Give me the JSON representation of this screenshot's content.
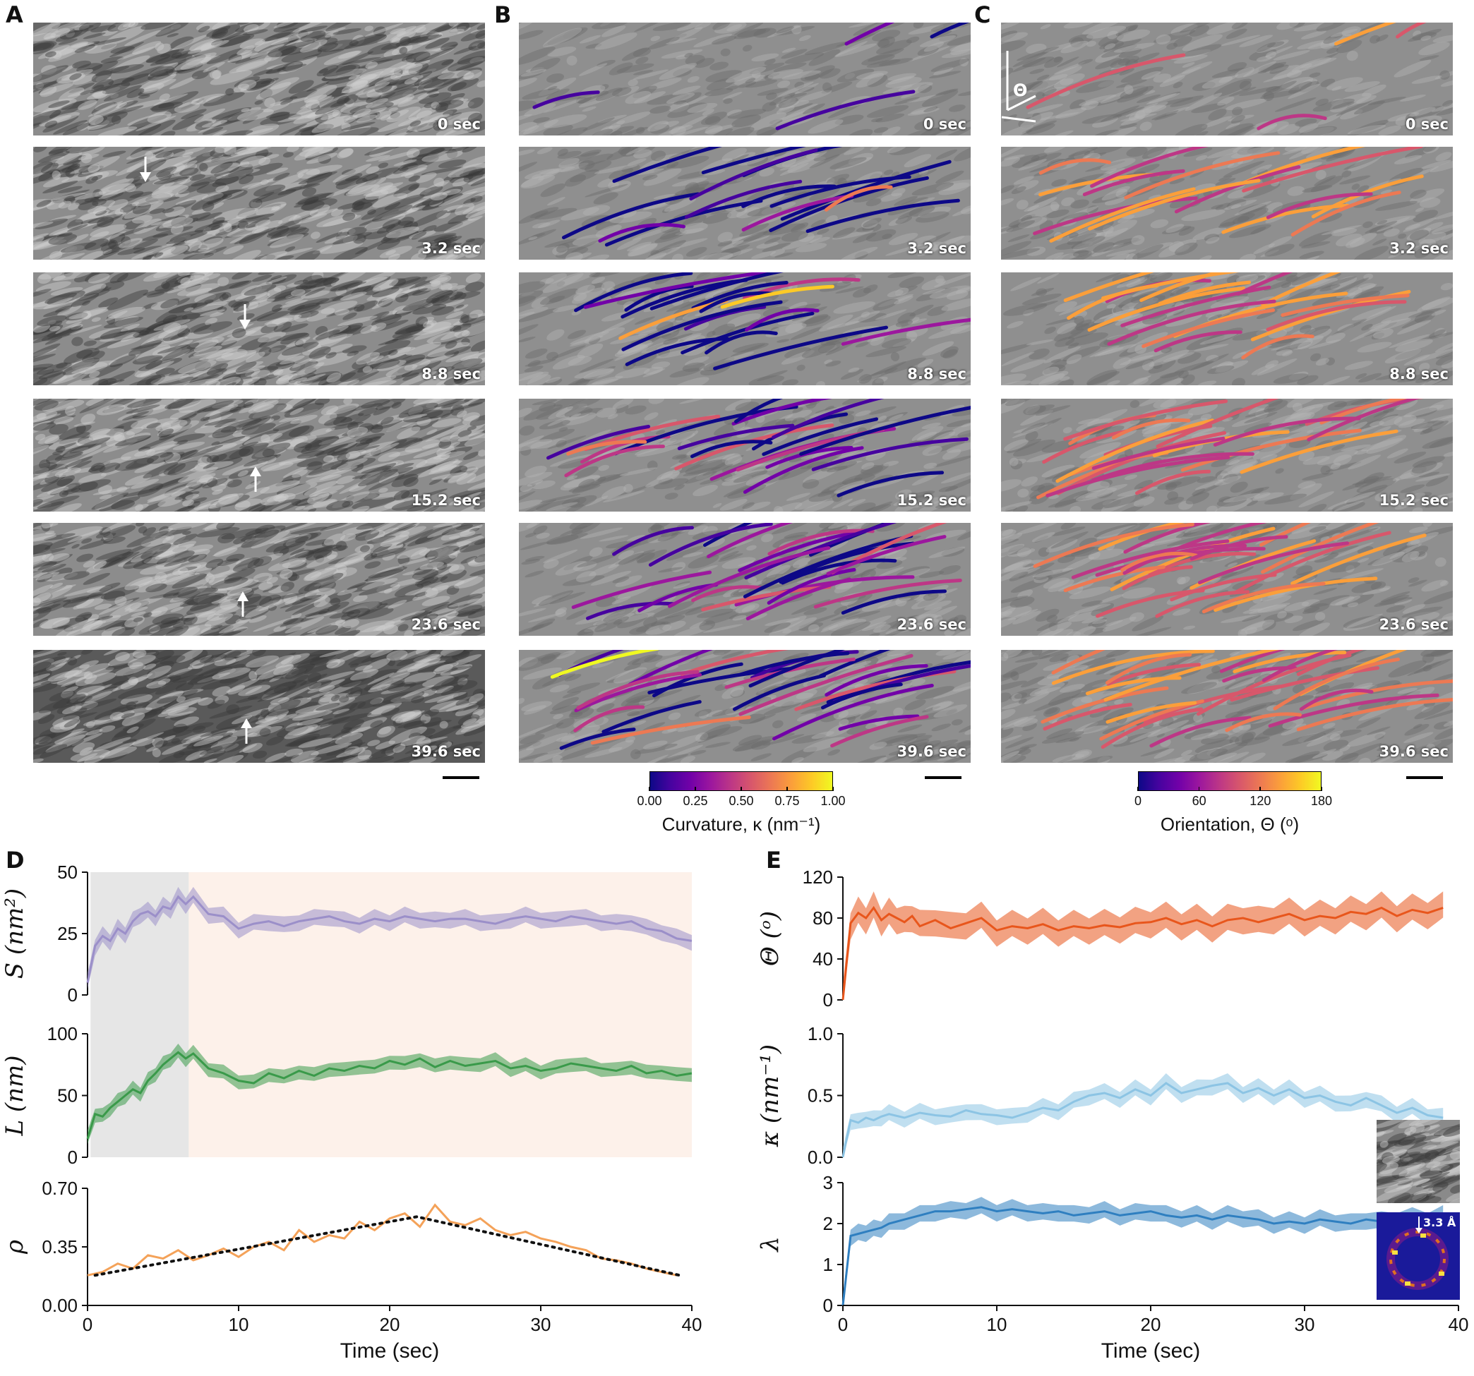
{
  "panel_labels": {
    "A": "A",
    "B": "B",
    "C": "C",
    "D": "D",
    "E": "E"
  },
  "timestamps": [
    "0 sec",
    "3.2 sec",
    "8.8 sec",
    "15.2 sec",
    "23.6 sec",
    "39.6 sec"
  ],
  "theta_symbol": "Θ",
  "colorbars": {
    "curvature": {
      "title": "Curvature, κ (nm⁻¹)",
      "ticks": [
        "0.00",
        "0.25",
        "0.50",
        "0.75",
        "1.00"
      ],
      "colormap": "plasma"
    },
    "orientation": {
      "title": "Orientation, Θ (ᵒ)",
      "ticks": [
        "0",
        "60",
        "120",
        "180"
      ],
      "colormap": "plasma"
    }
  },
  "inset_label": "3.3 Å",
  "colors": {
    "S": "#9b8fc9",
    "L": "#3a9a4a",
    "rho": "#f4a259",
    "theta": "#e8561c",
    "kappa": "#8cc4e4",
    "lambda": "#2f7fc0",
    "shade_gray": "#e6e6e6",
    "shade_peach": "#fdf1ea"
  },
  "chart_data": [
    {
      "type": "line",
      "panel": "D",
      "xlabel": "Time (sec)",
      "xlim": [
        0,
        40
      ],
      "xticks": [
        "0",
        "10",
        "20",
        "30",
        "40"
      ],
      "shaded_regions": [
        {
          "x": [
            0.2,
            6.7
          ],
          "color": "gray"
        },
        {
          "x": [
            6.7,
            40
          ],
          "color": "peach"
        }
      ],
      "subplots": [
        {
          "ylabel": "S (nm²)",
          "ylim": [
            0,
            50
          ],
          "yticks": [
            "0",
            "25",
            "50"
          ],
          "series": [
            {
              "x": [
                0,
                0.5,
                1,
                1.5,
                2,
                2.5,
                3,
                3.5,
                4,
                4.5,
                5,
                5.5,
                6,
                6.5,
                7,
                8,
                9,
                10,
                11,
                12,
                13,
                14,
                15,
                16,
                17,
                18,
                19,
                20,
                21,
                22,
                23,
                24,
                25,
                26,
                27,
                28,
                29,
                30,
                31,
                32,
                33,
                34,
                35,
                36,
                37,
                38,
                39,
                40
              ],
              "values": [
                5,
                20,
                24,
                22,
                27,
                25,
                30,
                33,
                34,
                32,
                36,
                35,
                40,
                37,
                40,
                33,
                32,
                27,
                29,
                30,
                28,
                30,
                31,
                32,
                30,
                29,
                31,
                30,
                32,
                31,
                30,
                31,
                31,
                30,
                29,
                31,
                32,
                31,
                30,
                32,
                31,
                30,
                29,
                30,
                27,
                26,
                23,
                22
              ],
              "band": 4
            }
          ]
        },
        {
          "ylabel": "L (nm)",
          "ylim": [
            0,
            100
          ],
          "yticks": [
            "0",
            "50",
            "100"
          ],
          "series": [
            {
              "x": [
                0,
                0.5,
                1,
                1.5,
                2,
                2.5,
                3,
                3.5,
                4,
                4.5,
                5,
                5.5,
                6,
                6.5,
                7,
                8,
                9,
                10,
                11,
                12,
                13,
                14,
                15,
                16,
                17,
                18,
                19,
                20,
                21,
                22,
                23,
                24,
                25,
                26,
                27,
                28,
                29,
                30,
                31,
                32,
                33,
                34,
                35,
                36,
                37,
                38,
                39,
                40
              ],
              "values": [
                15,
                35,
                33,
                40,
                45,
                50,
                55,
                52,
                62,
                68,
                75,
                80,
                85,
                80,
                84,
                72,
                68,
                62,
                60,
                68,
                64,
                70,
                66,
                72,
                70,
                74,
                72,
                78,
                75,
                80,
                73,
                78,
                74,
                76,
                78,
                72,
                74,
                70,
                72,
                76,
                74,
                72,
                70,
                74,
                68,
                70,
                66,
                68
              ],
              "band": 7
            }
          ]
        },
        {
          "ylabel": "ρ",
          "ylim": [
            0,
            0.7
          ],
          "yticks": [
            "0.00",
            "0.35",
            "0.70"
          ],
          "series": [
            {
              "x": [
                0,
                1,
                2,
                3,
                4,
                5,
                6,
                7,
                8,
                9,
                10,
                11,
                12,
                13,
                14,
                15,
                16,
                17,
                18,
                19,
                20,
                21,
                22,
                23,
                24,
                25,
                26,
                27,
                28,
                29,
                30,
                31,
                32,
                33,
                34,
                35,
                36,
                37,
                38,
                39
              ],
              "values": [
                0.18,
                0.2,
                0.25,
                0.22,
                0.3,
                0.28,
                0.33,
                0.27,
                0.3,
                0.34,
                0.29,
                0.35,
                0.38,
                0.33,
                0.45,
                0.38,
                0.42,
                0.4,
                0.5,
                0.45,
                0.52,
                0.55,
                0.47,
                0.6,
                0.5,
                0.48,
                0.52,
                0.45,
                0.42,
                0.44,
                0.4,
                0.38,
                0.35,
                0.33,
                0.28,
                0.27,
                0.25,
                0.22,
                0.2,
                0.18
              ]
            }
          ],
          "trend": {
            "x": [
              0.5,
              21.8,
              39.2
            ],
            "values": [
              0.18,
              0.53,
              0.18
            ]
          }
        }
      ]
    },
    {
      "type": "line",
      "panel": "E",
      "xlabel": "Time (sec)",
      "xlim": [
        0,
        40
      ],
      "xticks": [
        "0",
        "10",
        "20",
        "30",
        "40"
      ],
      "subplots": [
        {
          "ylabel": "Θ (ᵒ)",
          "ylim": [
            0,
            120
          ],
          "yticks": [
            "0",
            "40",
            "80",
            "120"
          ],
          "series": [
            {
              "x": [
                0,
                0.5,
                1,
                1.5,
                2,
                2.5,
                3,
                3.5,
                4,
                4.5,
                5,
                6,
                7,
                8,
                9,
                10,
                11,
                12,
                13,
                14,
                15,
                16,
                17,
                18,
                19,
                20,
                21,
                22,
                23,
                24,
                25,
                26,
                27,
                28,
                29,
                30,
                31,
                32,
                33,
                34,
                35,
                36,
                37,
                38,
                39
              ],
              "values": [
                0,
                75,
                85,
                80,
                90,
                78,
                84,
                80,
                76,
                82,
                72,
                78,
                70,
                75,
                80,
                68,
                72,
                70,
                74,
                68,
                72,
                70,
                73,
                71,
                75,
                76,
                80,
                74,
                78,
                72,
                78,
                80,
                76,
                80,
                84,
                78,
                82,
                80,
                86,
                84,
                90,
                82,
                88,
                85,
                90
              ],
              "band": 16
            }
          ]
        },
        {
          "ylabel": "κ (nm⁻¹)",
          "ylim": [
            0,
            1.0
          ],
          "yticks": [
            "0.0",
            "0.5",
            "1.0"
          ],
          "series": [
            {
              "x": [
                0,
                0.5,
                1,
                1.5,
                2,
                2.5,
                3,
                4,
                5,
                6,
                7,
                8,
                9,
                10,
                11,
                12,
                13,
                14,
                15,
                16,
                17,
                18,
                19,
                20,
                21,
                22,
                23,
                24,
                25,
                26,
                27,
                28,
                29,
                30,
                31,
                32,
                33,
                34,
                35,
                36,
                37,
                38,
                39
              ],
              "values": [
                0,
                0.3,
                0.28,
                0.32,
                0.3,
                0.33,
                0.35,
                0.32,
                0.36,
                0.34,
                0.33,
                0.38,
                0.35,
                0.34,
                0.32,
                0.36,
                0.4,
                0.38,
                0.45,
                0.5,
                0.52,
                0.48,
                0.55,
                0.5,
                0.6,
                0.52,
                0.55,
                0.58,
                0.6,
                0.52,
                0.56,
                0.5,
                0.55,
                0.48,
                0.5,
                0.45,
                0.42,
                0.48,
                0.42,
                0.36,
                0.4,
                0.34,
                0.32
              ],
              "band": 0.08
            }
          ]
        },
        {
          "ylabel": "λ",
          "ylim": [
            0,
            3
          ],
          "yticks": [
            "0",
            "1",
            "2",
            "3"
          ],
          "series": [
            {
              "x": [
                0,
                0.5,
                1,
                1.5,
                2,
                2.5,
                3,
                4,
                5,
                6,
                7,
                8,
                9,
                10,
                11,
                12,
                13,
                14,
                15,
                16,
                17,
                18,
                19,
                20,
                21,
                22,
                23,
                24,
                25,
                26,
                27,
                28,
                29,
                30,
                31,
                32,
                33,
                34,
                35,
                36,
                37,
                38,
                39
              ],
              "values": [
                0,
                1.7,
                1.75,
                1.8,
                1.85,
                1.9,
                2.0,
                2.1,
                2.2,
                2.3,
                2.3,
                2.35,
                2.4,
                2.3,
                2.35,
                2.3,
                2.25,
                2.3,
                2.2,
                2.25,
                2.3,
                2.2,
                2.25,
                2.3,
                2.2,
                2.15,
                2.2,
                2.1,
                2.2,
                2.15,
                2.1,
                2.0,
                2.05,
                2.0,
                2.1,
                2.05,
                2.0,
                2.1,
                2.05,
                2.1,
                2.15,
                2.1,
                2.2
              ],
              "band": 0.25
            }
          ]
        }
      ]
    }
  ]
}
